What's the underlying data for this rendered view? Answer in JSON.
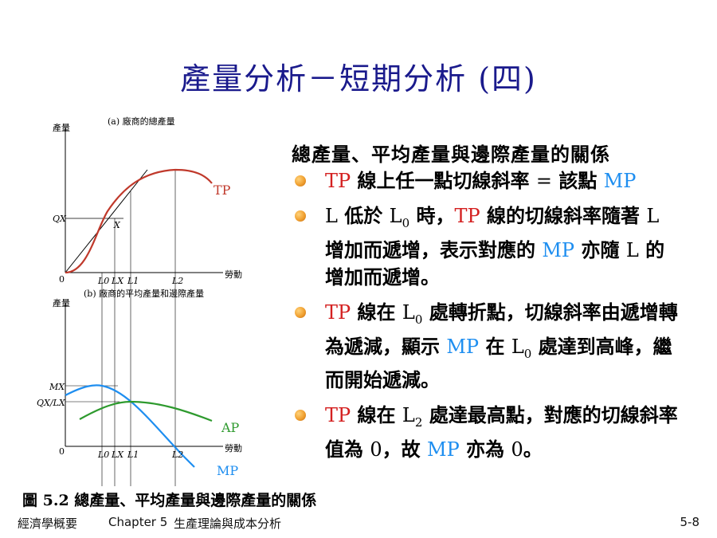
{
  "title": "產量分析－短期分析 (四)",
  "heading": "總產量、平均產量與邊際產量的關係",
  "bullets": [
    {
      "p1": "TP",
      "p2": " 線上任一點切線斜率 ",
      "p3": "=",
      "p4": " 該點 ",
      "p5": "MP"
    },
    {
      "p1": "L",
      "p2": " 低於 ",
      "p3": "L",
      "p3sub": "0",
      "p4": " 時，",
      "p5": "TP",
      "p6": " 線的切線斜率隨著 ",
      "p7": "L",
      "p8": " 增加而遞增，表示對應的 ",
      "p9": "MP",
      "p10": " 亦隨 ",
      "p11": "L",
      "p12": " 的增加而遞增。"
    },
    {
      "p1": "TP",
      "p2": " 線在 ",
      "p3": "L",
      "p3sub": "0",
      "p4": " 處轉折點，切線斜率由遞增轉為遞減，顯示 ",
      "p5": "MP",
      "p6": " 在 ",
      "p7": "L",
      "p7sub": "0",
      "p8": " 處達到高峰，繼而開始遞減。"
    },
    {
      "p1": "TP",
      "p2": " 線在 ",
      "p3": "L",
      "p3sub": "2",
      "p4": " 處達最高點，對應的切線斜率值為 ",
      "p5": "0",
      "p6": "，故 ",
      "p7": "MP",
      "p8": " 亦為 ",
      "p9": "0",
      "p10": "。"
    }
  ],
  "figure": {
    "a_title": "(a) 廠商的總產量",
    "b_title": "(b) 廠商的平均產量和邊際產量",
    "y_label": "產量",
    "x_label": "勞動",
    "origin": "0",
    "tp_label": "TP",
    "ap_label": "AP",
    "mp_label": "MP",
    "qx_label": "QX",
    "x_point": "X",
    "mx_label": "MX",
    "qxlx_label": "QX/LX",
    "ticks": [
      "L0",
      "LX",
      "L1",
      "L2"
    ]
  },
  "caption": "圖 5.2 總產量、平均產量與邊際產量的關係",
  "footer": {
    "book": "經濟學概要",
    "chapter": "Chapter 5",
    "chapter_title": "生產理論與成本分析",
    "page": "5-8"
  },
  "colors": {
    "title": "#1a1a8c",
    "tp": "#c0392b",
    "mp": "#1e8ef0",
    "ap": "#2e9a2e",
    "bullet": "#f0a030"
  }
}
